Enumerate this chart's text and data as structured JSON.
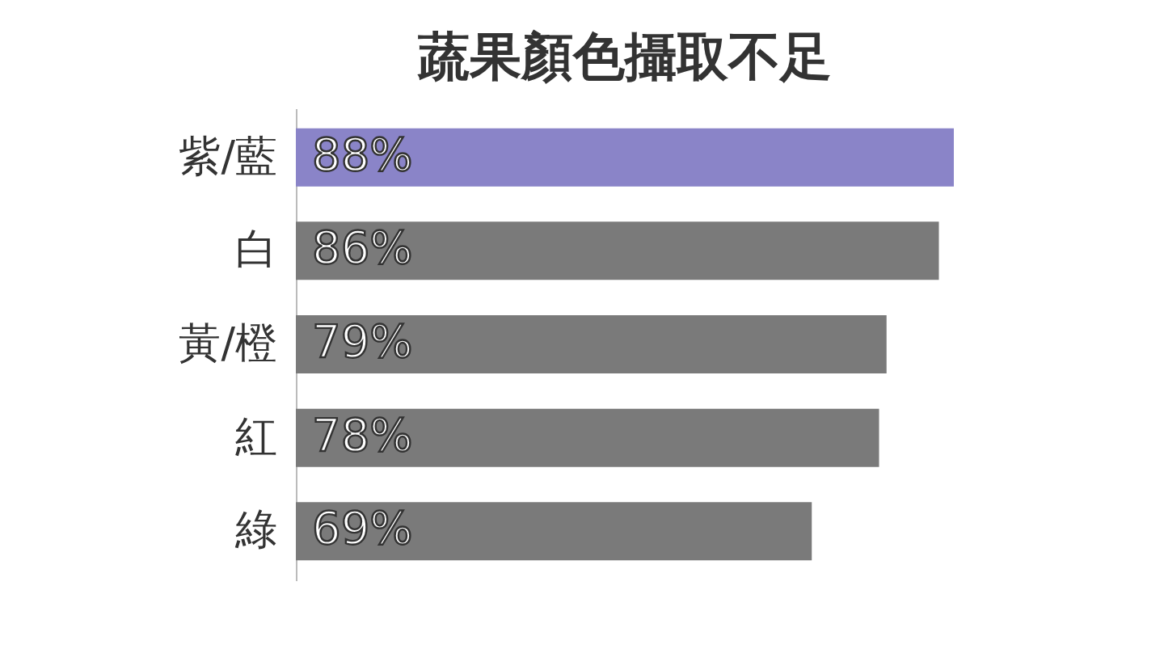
{
  "chart_data": {
    "type": "bar",
    "orientation": "horizontal",
    "title": "蔬果顏色攝取不足",
    "categories": [
      "紫/藍",
      "白",
      "黃/橙",
      "紅",
      "綠"
    ],
    "values": [
      88,
      86,
      79,
      78,
      69
    ],
    "value_labels": [
      "88%",
      "86%",
      "79%",
      "78%",
      "69%"
    ],
    "colors": [
      "#8a84c8",
      "#7a7a7a",
      "#7a7a7a",
      "#7a7a7a",
      "#7a7a7a"
    ],
    "tick_labels": "y",
    "grid": false
  }
}
